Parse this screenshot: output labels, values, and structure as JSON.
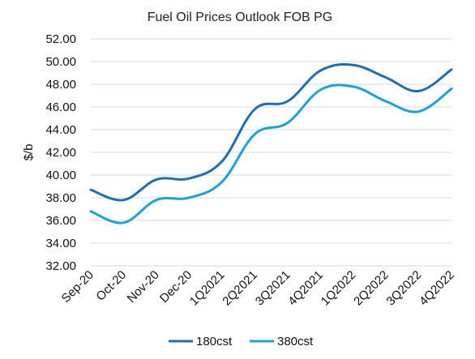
{
  "chart_data": {
    "type": "line",
    "title": "Fuel Oil Prices Outlook FOB PG",
    "ylabel": "$/b",
    "xlabel": "",
    "ylim": [
      32,
      52
    ],
    "yticks": [
      "32.00",
      "34.00",
      "36.00",
      "38.00",
      "40.00",
      "42.00",
      "44.00",
      "46.00",
      "48.00",
      "50.00",
      "52.00"
    ],
    "categories": [
      "Sep-20",
      "Oct-20",
      "Nov-20",
      "Dec-20",
      "1Q2021",
      "2Q2021",
      "3Q2021",
      "4Q2021",
      "1Q2022",
      "2Q2022",
      "3Q2022",
      "4Q2022"
    ],
    "grid": true,
    "legend_position": "bottom",
    "series": [
      {
        "name": "180cst",
        "color": "#1f6eb5",
        "values": [
          38.7,
          37.8,
          39.6,
          39.7,
          41.2,
          45.8,
          46.5,
          49.2,
          49.7,
          48.6,
          47.4,
          49.3
        ]
      },
      {
        "name": "380cst",
        "color": "#1da1db",
        "values": [
          36.8,
          35.8,
          37.8,
          38.0,
          39.4,
          43.6,
          44.6,
          47.5,
          47.8,
          46.5,
          45.6,
          47.6
        ]
      }
    ]
  }
}
